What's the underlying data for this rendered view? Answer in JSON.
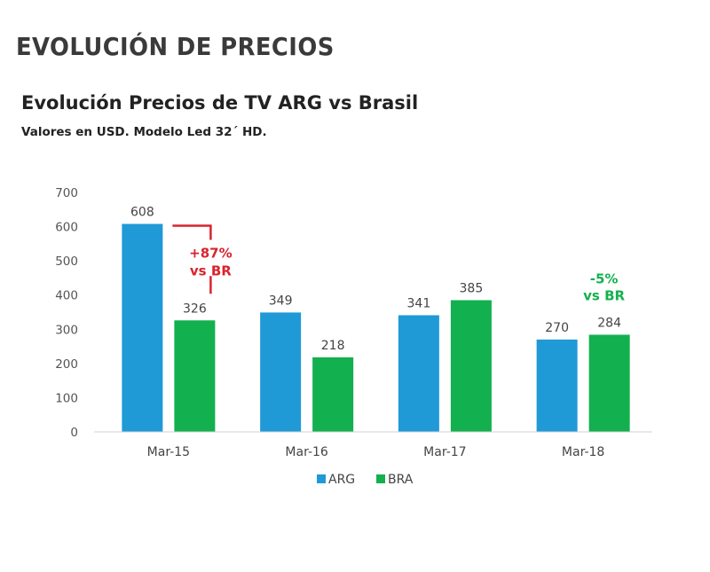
{
  "slide": {
    "title": "EVOLUCIÓN DE PRECIOS"
  },
  "chart_data": {
    "type": "bar",
    "title": "Evolución Precios de TV ARG vs Brasil",
    "subtitle": "Valores en USD. Modelo Led 32´ HD.",
    "xlabel": "",
    "ylabel": "",
    "ylim": [
      0,
      700
    ],
    "yticks": [
      0,
      100,
      200,
      300,
      400,
      500,
      600,
      700
    ],
    "categories": [
      "Mar-15",
      "Mar-16",
      "Mar-17",
      "Mar-18"
    ],
    "series": [
      {
        "name": "ARG",
        "color": "#1f9ad6",
        "values": [
          608,
          349,
          341,
          270
        ]
      },
      {
        "name": "BRA",
        "color": "#13b04f",
        "values": [
          326,
          218,
          385,
          284
        ]
      }
    ],
    "grid": false,
    "legend_position": "bottom-center",
    "annotations": [
      {
        "category": "Mar-15",
        "lines": [
          "+87%",
          "vs BR"
        ],
        "color": "#d9232e"
      },
      {
        "category": "Mar-18",
        "lines": [
          "-5%",
          "vs BR"
        ],
        "color": "#13b04f"
      }
    ]
  }
}
